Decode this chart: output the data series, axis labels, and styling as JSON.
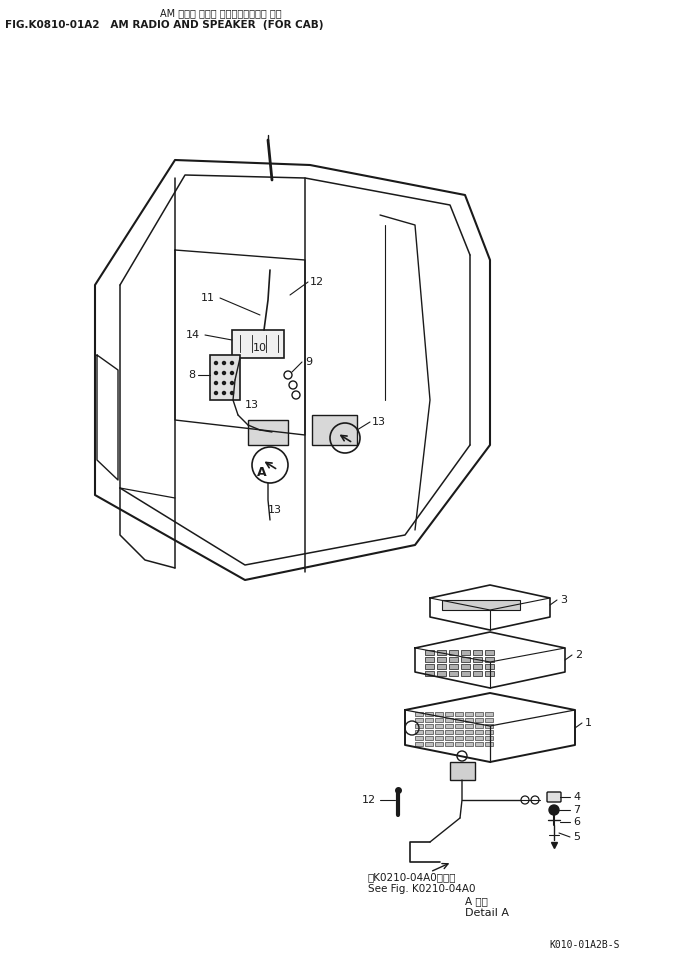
{
  "title_jp": "AM ラジオ および スピーカ（キャブ 用）",
  "title_en": "FIG.K0810-01A2   AM RADIO AND SPEAKER  (FOR CAB)",
  "bg_color": "#ffffff",
  "lc": "#1a1a1a",
  "footer_jp": "第K0210-04A0図参照",
  "footer_en": "See Fig. K0210-04A0",
  "detail_title_jp": "A 詳細",
  "detail_title_en": "Detail A",
  "footer_code": "K010-01A2B-S"
}
